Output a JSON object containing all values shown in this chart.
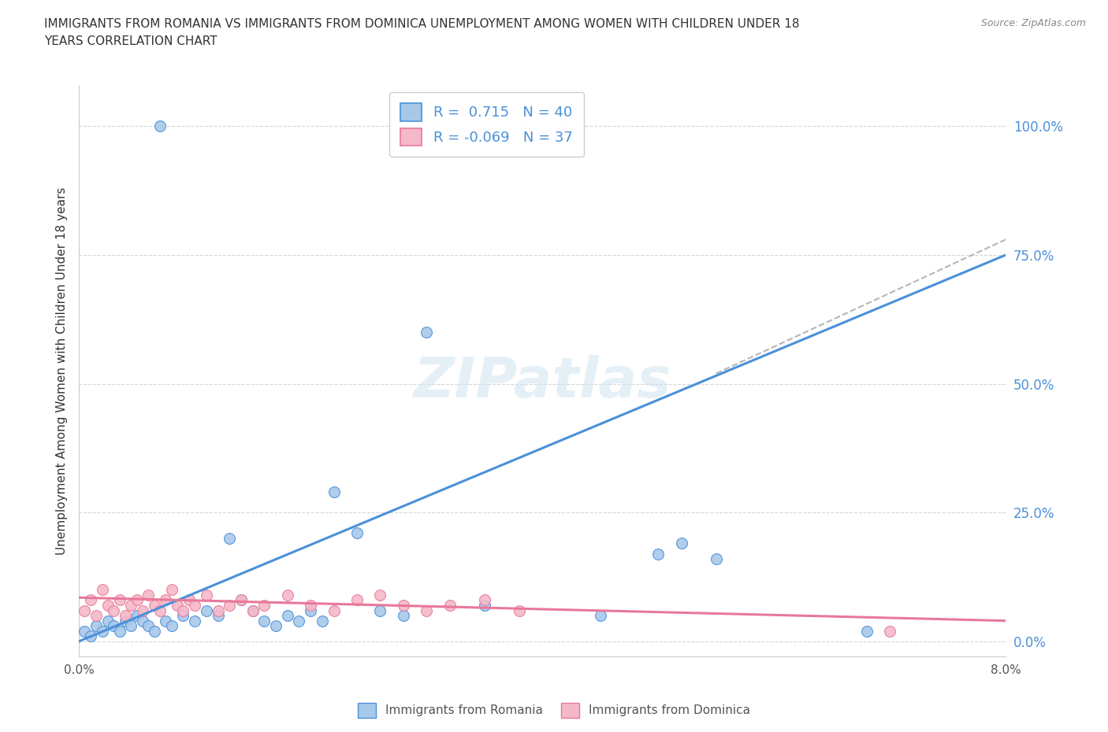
{
  "title": "IMMIGRANTS FROM ROMANIA VS IMMIGRANTS FROM DOMINICA UNEMPLOYMENT AMONG WOMEN WITH CHILDREN UNDER 18\nYEARS CORRELATION CHART",
  "source": "Source: ZipAtlas.com",
  "ylabel": "Unemployment Among Women with Children Under 18 years",
  "xlim": [
    0.0,
    8.0
  ],
  "ylim": [
    -3.0,
    108.0
  ],
  "yticks": [
    0,
    25,
    50,
    75,
    100
  ],
  "ytick_labels": [
    "0.0%",
    "25.0%",
    "50.0%",
    "75.0%",
    "100.0%"
  ],
  "romania_color": "#a8c8ea",
  "dominica_color": "#f5b8c8",
  "romania_line_color": "#4a90d9",
  "dominica_line_color": "#e8789a",
  "romania_R": 0.715,
  "romania_N": 40,
  "dominica_R": -0.069,
  "dominica_N": 37,
  "watermark": "ZIPatlas",
  "background_color": "#ffffff",
  "grid_color": "#cccccc",
  "romania_scatter_x": [
    0.05,
    0.1,
    0.15,
    0.2,
    0.25,
    0.3,
    0.35,
    0.4,
    0.45,
    0.5,
    0.55,
    0.6,
    0.65,
    0.7,
    0.75,
    0.8,
    0.9,
    1.0,
    1.1,
    1.2,
    1.3,
    1.4,
    1.5,
    1.6,
    1.7,
    1.8,
    1.9,
    2.0,
    2.1,
    2.2,
    2.4,
    2.6,
    2.8,
    3.0,
    3.5,
    4.5,
    5.0,
    5.2,
    5.5,
    6.8
  ],
  "romania_scatter_y": [
    2,
    1,
    3,
    2,
    4,
    3,
    2,
    4,
    3,
    5,
    4,
    3,
    2,
    100,
    4,
    3,
    5,
    4,
    6,
    5,
    20,
    8,
    6,
    4,
    3,
    5,
    4,
    6,
    4,
    29,
    21,
    6,
    5,
    60,
    7,
    5,
    17,
    19,
    16,
    2
  ],
  "dominica_scatter_x": [
    0.05,
    0.1,
    0.15,
    0.2,
    0.25,
    0.3,
    0.35,
    0.4,
    0.45,
    0.5,
    0.55,
    0.6,
    0.65,
    0.7,
    0.75,
    0.8,
    0.85,
    0.9,
    0.95,
    1.0,
    1.1,
    1.2,
    1.3,
    1.4,
    1.5,
    1.6,
    1.8,
    2.0,
    2.2,
    2.4,
    2.6,
    2.8,
    3.0,
    3.2,
    3.5,
    3.8,
    7.0
  ],
  "dominica_scatter_y": [
    6,
    8,
    5,
    10,
    7,
    6,
    8,
    5,
    7,
    8,
    6,
    9,
    7,
    6,
    8,
    10,
    7,
    6,
    8,
    7,
    9,
    6,
    7,
    8,
    6,
    7,
    9,
    7,
    6,
    8,
    9,
    7,
    6,
    7,
    8,
    6,
    2
  ],
  "reg_romania_x0": 0.0,
  "reg_romania_y0": 0.0,
  "reg_romania_x1": 8.0,
  "reg_romania_y1": 75.0,
  "reg_dominica_x0": 0.0,
  "reg_dominica_y0": 8.5,
  "reg_dominica_x1": 8.0,
  "reg_dominica_y1": 4.0,
  "dash_x0": 5.5,
  "dash_x1": 8.0,
  "dash_y0": 52.0,
  "dash_y1": 78.0
}
